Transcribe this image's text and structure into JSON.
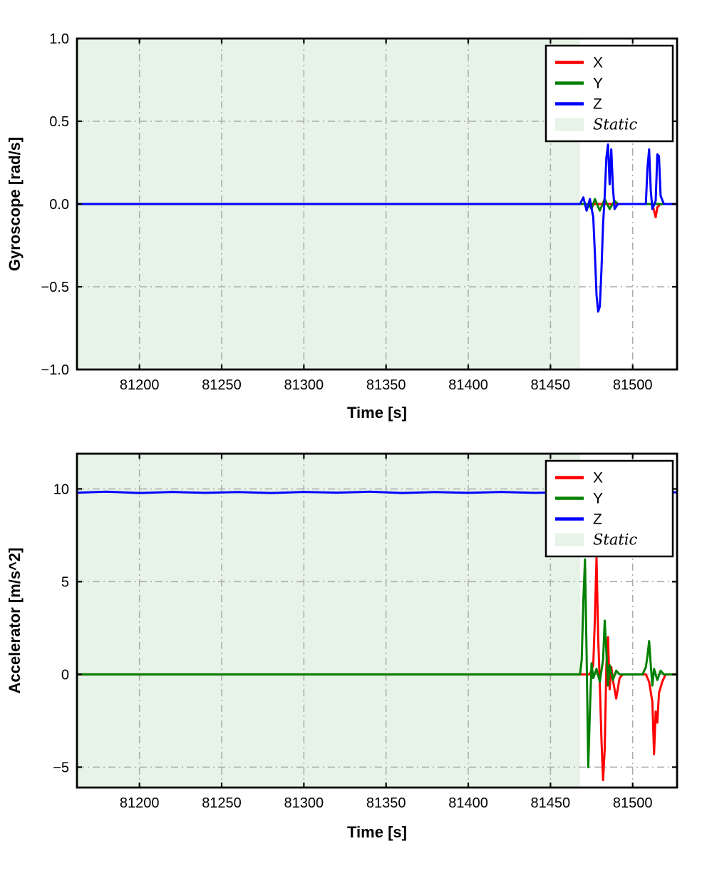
{
  "figure": {
    "background": "#ffffff"
  },
  "chart_data": [
    {
      "name": "gyroscope",
      "type": "line",
      "title": "",
      "xlabel": "Time [s]",
      "ylabel": "Gyroscope [rad/s]",
      "xlim": [
        81162,
        81527
      ],
      "ylim": [
        -1.0,
        1.0
      ],
      "xticks": [
        81200,
        81250,
        81300,
        81350,
        81400,
        81450,
        81500
      ],
      "xtick_labels": [
        "81200",
        "81250",
        "81300",
        "81350",
        "81400",
        "81450",
        "81500"
      ],
      "yticks": [
        1.0,
        0.5,
        0.0,
        -0.5,
        -1.0
      ],
      "ytick_labels": [
        "1.0",
        "0.5",
        "0.0",
        "−0.5",
        "−1.0"
      ],
      "grid": {
        "on": true,
        "style": "dashdot",
        "color": "#ababab"
      },
      "static_region": {
        "x0": 81162,
        "x1": 81468,
        "color": "#e6f3e6",
        "label": "Static"
      },
      "legend": {
        "position": "top-right",
        "entries": [
          {
            "label": "X",
            "color": "#ff0000",
            "type": "line"
          },
          {
            "label": "Y",
            "color": "#008000",
            "type": "line"
          },
          {
            "label": "Z",
            "color": "#0000ff",
            "type": "line"
          },
          {
            "label": "Static",
            "color": "#e6f3e6",
            "type": "patch",
            "italic": true
          }
        ]
      },
      "series": [
        {
          "name": "X",
          "color": "#ff0000",
          "points": [
            [
              81162,
              0
            ],
            [
              81505,
              0
            ],
            [
              81512,
              0
            ],
            [
              81513,
              -0.04
            ],
            [
              81514,
              -0.08
            ],
            [
              81515,
              -0.02
            ],
            [
              81517,
              0
            ],
            [
              81527,
              0
            ]
          ]
        },
        {
          "name": "Y",
          "color": "#008000",
          "points": [
            [
              81162,
              0
            ],
            [
              81473,
              0
            ],
            [
              81475,
              -0.03
            ],
            [
              81477,
              0.03
            ],
            [
              81480,
              -0.04
            ],
            [
              81483,
              0.03
            ],
            [
              81486,
              -0.03
            ],
            [
              81489,
              0.02
            ],
            [
              81491,
              0
            ],
            [
              81527,
              0
            ]
          ]
        },
        {
          "name": "Z",
          "color": "#0000ff",
          "points": [
            [
              81162,
              0
            ],
            [
              81468,
              0
            ],
            [
              81470,
              0.04
            ],
            [
              81472,
              -0.04
            ],
            [
              81474,
              0.03
            ],
            [
              81476,
              -0.08
            ],
            [
              81477,
              -0.3
            ],
            [
              81478,
              -0.55
            ],
            [
              81479,
              -0.65
            ],
            [
              81480,
              -0.62
            ],
            [
              81481,
              -0.4
            ],
            [
              81482,
              -0.12
            ],
            [
              81483,
              0.05
            ],
            [
              81484,
              0.28
            ],
            [
              81485,
              0.36
            ],
            [
              81486,
              0.12
            ],
            [
              81487,
              0.33
            ],
            [
              81488,
              0.1
            ],
            [
              81489,
              -0.03
            ],
            [
              81491,
              0
            ],
            [
              81508,
              0
            ],
            [
              81509,
              0.22
            ],
            [
              81510,
              0.33
            ],
            [
              81511,
              0.08
            ],
            [
              81512,
              -0.03
            ],
            [
              81514,
              0.02
            ],
            [
              81515,
              0.3
            ],
            [
              81516,
              0.29
            ],
            [
              81517,
              0.05
            ],
            [
              81519,
              0
            ],
            [
              81527,
              0
            ]
          ]
        }
      ]
    },
    {
      "name": "accelerometer",
      "type": "line",
      "title": "",
      "xlabel": "Time [s]",
      "ylabel": "Accelerator [m/s^2]",
      "xlim": [
        81162,
        81527
      ],
      "ylim": [
        -6.1,
        11.9
      ],
      "xticks": [
        81200,
        81250,
        81300,
        81350,
        81400,
        81450,
        81500
      ],
      "xtick_labels": [
        "81200",
        "81250",
        "81300",
        "81350",
        "81400",
        "81450",
        "81500"
      ],
      "yticks": [
        10,
        5,
        0,
        -5
      ],
      "ytick_labels": [
        "10",
        "5",
        "0",
        "−5"
      ],
      "grid": {
        "on": true,
        "style": "dashdot",
        "color": "#ababab"
      },
      "static_region": {
        "x0": 81162,
        "x1": 81468,
        "color": "#e6f3e6",
        "label": "Static"
      },
      "legend": {
        "position": "top-right",
        "entries": [
          {
            "label": "X",
            "color": "#ff0000",
            "type": "line"
          },
          {
            "label": "Y",
            "color": "#008000",
            "type": "line"
          },
          {
            "label": "Z",
            "color": "#0000ff",
            "type": "line"
          },
          {
            "label": "Static",
            "color": "#e6f3e6",
            "type": "patch",
            "italic": true
          }
        ]
      },
      "series": [
        {
          "name": "X",
          "color": "#ff0000",
          "points": [
            [
              81162,
              0
            ],
            [
              81474,
              0
            ],
            [
              81476,
              0.5
            ],
            [
              81477,
              3.0
            ],
            [
              81478,
              6.3
            ],
            [
              81479,
              2.0
            ],
            [
              81480,
              -0.5
            ],
            [
              81481,
              -3.5
            ],
            [
              81482,
              -5.7
            ],
            [
              81483,
              -4.0
            ],
            [
              81484,
              0.5
            ],
            [
              81485,
              2.0
            ],
            [
              81486,
              -0.8
            ],
            [
              81487,
              0.4
            ],
            [
              81488,
              -0.3
            ],
            [
              81490,
              -1.3
            ],
            [
              81492,
              -0.2
            ],
            [
              81494,
              0
            ],
            [
              81508,
              0
            ],
            [
              81510,
              -0.4
            ],
            [
              81512,
              -1.5
            ],
            [
              81513,
              -4.3
            ],
            [
              81514,
              -2.0
            ],
            [
              81515,
              -2.6
            ],
            [
              81516,
              -1.0
            ],
            [
              81518,
              -0.4
            ],
            [
              81520,
              0
            ],
            [
              81527,
              0
            ]
          ]
        },
        {
          "name": "Y",
          "color": "#008000",
          "points": [
            [
              81162,
              0
            ],
            [
              81468,
              0
            ],
            [
              81469,
              0.8
            ],
            [
              81470,
              4.0
            ],
            [
              81471,
              6.2
            ],
            [
              81472,
              1.0
            ],
            [
              81473,
              -5.0
            ],
            [
              81474,
              -2.0
            ],
            [
              81475,
              0.6
            ],
            [
              81476,
              -0.2
            ],
            [
              81478,
              0.3
            ],
            [
              81480,
              -0.4
            ],
            [
              81482,
              0.8
            ],
            [
              81483,
              2.9
            ],
            [
              81484,
              1.2
            ],
            [
              81485,
              -0.6
            ],
            [
              81486,
              0.5
            ],
            [
              81488,
              -0.3
            ],
            [
              81490,
              0.2
            ],
            [
              81492,
              0
            ],
            [
              81506,
              0
            ],
            [
              81508,
              0.4
            ],
            [
              81509,
              1.0
            ],
            [
              81510,
              1.8
            ],
            [
              81511,
              0.5
            ],
            [
              81512,
              -0.6
            ],
            [
              81513,
              0.3
            ],
            [
              81515,
              -0.3
            ],
            [
              81517,
              0.2
            ],
            [
              81519,
              0
            ],
            [
              81527,
              0
            ]
          ]
        },
        {
          "name": "Z",
          "color": "#0000ff",
          "points": [
            [
              81162,
              9.8
            ],
            [
              81180,
              9.85
            ],
            [
              81200,
              9.78
            ],
            [
              81220,
              9.84
            ],
            [
              81240,
              9.79
            ],
            [
              81260,
              9.83
            ],
            [
              81280,
              9.78
            ],
            [
              81300,
              9.84
            ],
            [
              81320,
              9.8
            ],
            [
              81340,
              9.85
            ],
            [
              81360,
              9.78
            ],
            [
              81380,
              9.83
            ],
            [
              81400,
              9.79
            ],
            [
              81420,
              9.84
            ],
            [
              81440,
              9.79
            ],
            [
              81460,
              9.83
            ],
            [
              81480,
              9.78
            ],
            [
              81500,
              9.84
            ],
            [
              81515,
              9.8
            ],
            [
              81527,
              9.82
            ]
          ]
        }
      ]
    }
  ]
}
